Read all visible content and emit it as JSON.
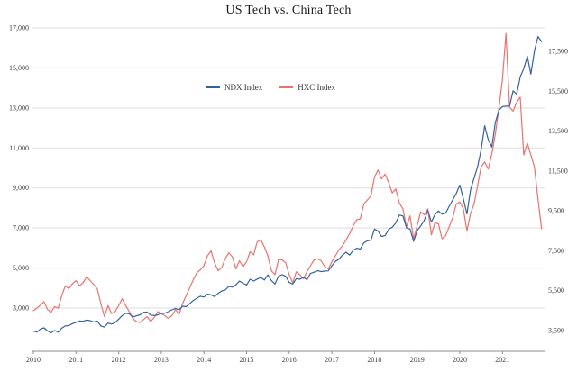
{
  "chart_data": {
    "type": "line",
    "title": "US Tech vs. China Tech",
    "legend_position": "inside-top-center",
    "grid": true,
    "x_start_year": 2010,
    "x_tick_labels": [
      "2010",
      "2011",
      "2012",
      "2013",
      "2014",
      "2015",
      "2016",
      "2017",
      "2018",
      "2019",
      "2020",
      "2021"
    ],
    "colors": {
      "grid": "#dedede",
      "axis_text": "#3c3c3c",
      "axis_line": "#8c8c8c"
    },
    "left_axis": {
      "series": "NDX Index",
      "ticks": [
        3000,
        5000,
        7000,
        9000,
        11000,
        13000,
        15000,
        17000
      ],
      "range": [
        839,
        17135
      ]
    },
    "right_axis": {
      "series": "HXC Index",
      "ticks": [
        3500,
        5500,
        7500,
        9500,
        11500,
        13500,
        15500,
        17500
      ],
      "range": [
        2461,
        18810
      ]
    },
    "series": [
      {
        "name": "NDX Index",
        "axis": "left",
        "color": "#35609e",
        "values": [
          1850,
          1800,
          1950,
          2010,
          1850,
          1760,
          1880,
          1790,
          1990,
          2110,
          2120,
          2220,
          2280,
          2350,
          2340,
          2400,
          2370,
          2300,
          2350,
          2100,
          2050,
          2250,
          2200,
          2270,
          2440,
          2620,
          2740,
          2710,
          2550,
          2610,
          2660,
          2780,
          2800,
          2650,
          2620,
          2660,
          2730,
          2740,
          2820,
          2910,
          2980,
          2910,
          3090,
          3070,
          3220,
          3380,
          3490,
          3590,
          3550,
          3700,
          3660,
          3570,
          3740,
          3850,
          3900,
          4080,
          4050,
          4160,
          4350,
          4240,
          4150,
          4440,
          4350,
          4450,
          4530,
          4400,
          4660,
          4370,
          4200,
          4600,
          4670,
          4590,
          4280,
          4200,
          4470,
          4440,
          4540,
          4420,
          4730,
          4790,
          4870,
          4820,
          4850,
          4860,
          5110,
          5330,
          5440,
          5650,
          5790,
          5650,
          5880,
          5990,
          5950,
          6260,
          6360,
          6400,
          6950,
          6850,
          6580,
          6620,
          6940,
          7040,
          7250,
          7650,
          7600,
          7000,
          6950,
          6330,
          6870,
          7100,
          7380,
          7870,
          7300,
          7670,
          7850,
          7690,
          7740,
          8080,
          8400,
          8730,
          9150,
          8460,
          7700,
          8890,
          9490,
          10060,
          10900,
          12110,
          11420,
          11050,
          12270,
          12890,
          13070,
          13090,
          13090,
          13860,
          13690,
          14550,
          14960,
          15580,
          14690,
          15850,
          16570,
          16320
        ]
      },
      {
        "name": "HXC Index",
        "axis": "right",
        "color": "#e8736f",
        "values": [
          4500,
          4620,
          4780,
          4950,
          4550,
          4420,
          4700,
          4620,
          5250,
          5750,
          5600,
          5850,
          6000,
          5750,
          5900,
          6200,
          6000,
          5800,
          5600,
          4850,
          4200,
          4750,
          4350,
          4450,
          4750,
          5100,
          4750,
          4450,
          4100,
          3950,
          3900,
          4050,
          4200,
          3950,
          4150,
          4450,
          4350,
          4250,
          4100,
          4250,
          4550,
          4300,
          4850,
          5250,
          5650,
          6050,
          6400,
          6550,
          6750,
          7250,
          7500,
          6900,
          6500,
          6650,
          7100,
          7400,
          7200,
          6600,
          7000,
          6700,
          6950,
          7450,
          7300,
          7950,
          8050,
          7700,
          7250,
          6500,
          6300,
          7050,
          7050,
          6900,
          6300,
          5900,
          6450,
          6300,
          6100,
          6450,
          6750,
          7050,
          7100,
          7000,
          6700,
          6600,
          6950,
          7250,
          7550,
          7750,
          8050,
          8350,
          8750,
          9050,
          9100,
          9850,
          10050,
          10250,
          11200,
          11550,
          11100,
          11350,
          10900,
          10400,
          10600,
          9900,
          9600,
          8700,
          9250,
          8100,
          8750,
          9450,
          9300,
          9600,
          8300,
          8900,
          8850,
          8100,
          8250,
          8700,
          9150,
          9850,
          9950,
          9600,
          8500,
          9350,
          9850,
          10750,
          11700,
          11950,
          11600,
          12350,
          13350,
          14650,
          16100,
          18400,
          14700,
          14500,
          14950,
          15200,
          12300,
          12900,
          12300,
          11700,
          10100,
          8600
        ]
      }
    ]
  }
}
